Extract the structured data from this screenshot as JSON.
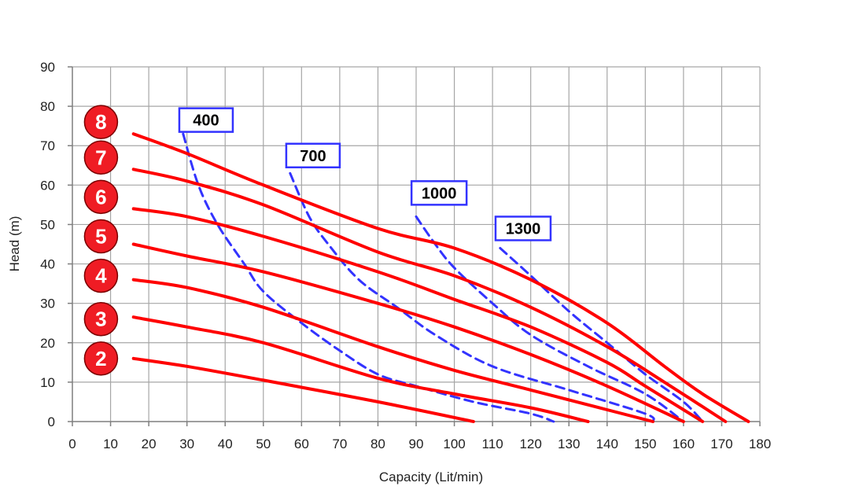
{
  "chart_data": {
    "type": "line",
    "title": "",
    "xlabel": "Capacity (Lit/min)",
    "ylabel": "Head (m)",
    "xlim": [
      0,
      180
    ],
    "ylim": [
      0,
      90
    ],
    "x_ticks": [
      0,
      10,
      20,
      30,
      40,
      50,
      60,
      70,
      80,
      90,
      100,
      110,
      120,
      130,
      140,
      150,
      160,
      170,
      180
    ],
    "y_ticks": [
      0,
      10,
      20,
      30,
      40,
      50,
      60,
      70,
      80,
      90
    ],
    "grid": true,
    "colors": {
      "pressure_curve": "#ff0000",
      "speed_curve": "#3333ff",
      "badge_fill": "#ef1c24",
      "badge_text": "#ffffff",
      "label_border": "#3333ff"
    },
    "series": [
      {
        "name": "8",
        "kind": "pressure",
        "points": [
          [
            16,
            73
          ],
          [
            30,
            68
          ],
          [
            50,
            60
          ],
          [
            80,
            49
          ],
          [
            100,
            44
          ],
          [
            120,
            36
          ],
          [
            140,
            25
          ],
          [
            155,
            14
          ],
          [
            165,
            7
          ],
          [
            177,
            0
          ]
        ]
      },
      {
        "name": "7",
        "kind": "pressure",
        "points": [
          [
            16,
            64
          ],
          [
            30,
            61
          ],
          [
            50,
            55
          ],
          [
            80,
            43
          ],
          [
            100,
            37
          ],
          [
            120,
            29
          ],
          [
            140,
            19
          ],
          [
            155,
            10
          ],
          [
            171,
            0
          ]
        ]
      },
      {
        "name": "6",
        "kind": "pressure",
        "points": [
          [
            16,
            54
          ],
          [
            30,
            52
          ],
          [
            50,
            47
          ],
          [
            80,
            38
          ],
          [
            100,
            31
          ],
          [
            120,
            24
          ],
          [
            140,
            15
          ],
          [
            150,
            9
          ],
          [
            165,
            0
          ]
        ]
      },
      {
        "name": "5",
        "kind": "pressure",
        "points": [
          [
            16,
            45
          ],
          [
            30,
            42
          ],
          [
            50,
            38
          ],
          [
            80,
            30
          ],
          [
            100,
            24
          ],
          [
            120,
            17
          ],
          [
            140,
            9
          ],
          [
            160,
            0
          ]
        ]
      },
      {
        "name": "4",
        "kind": "pressure",
        "points": [
          [
            16,
            36
          ],
          [
            30,
            34
          ],
          [
            50,
            29
          ],
          [
            80,
            19
          ],
          [
            100,
            13
          ],
          [
            120,
            8
          ],
          [
            140,
            3
          ],
          [
            152,
            0
          ]
        ]
      },
      {
        "name": "3",
        "kind": "pressure",
        "points": [
          [
            16,
            26.5
          ],
          [
            30,
            24
          ],
          [
            50,
            20
          ],
          [
            80,
            11
          ],
          [
            100,
            7
          ],
          [
            120,
            3.5
          ],
          [
            135,
            0
          ]
        ]
      },
      {
        "name": "2",
        "kind": "pressure",
        "points": [
          [
            16,
            16
          ],
          [
            30,
            14
          ],
          [
            50,
            10.5
          ],
          [
            80,
            5
          ],
          [
            105,
            0
          ]
        ]
      },
      {
        "name": "400",
        "kind": "speed",
        "points": [
          [
            29,
            73
          ],
          [
            33,
            60
          ],
          [
            38,
            50
          ],
          [
            45,
            40
          ],
          [
            50,
            33
          ],
          [
            60,
            25
          ],
          [
            70,
            18
          ],
          [
            80,
            12
          ],
          [
            90,
            9
          ],
          [
            105,
            5
          ],
          [
            120,
            2
          ],
          [
            126,
            0
          ]
        ]
      },
      {
        "name": "700",
        "kind": "speed",
        "points": [
          [
            57,
            63
          ],
          [
            62,
            52
          ],
          [
            67,
            45
          ],
          [
            75,
            36
          ],
          [
            85,
            29
          ],
          [
            95,
            22
          ],
          [
            110,
            14
          ],
          [
            130,
            8
          ],
          [
            150,
            2
          ],
          [
            152,
            0
          ]
        ]
      },
      {
        "name": "1000",
        "kind": "speed",
        "points": [
          [
            90,
            52
          ],
          [
            95,
            45
          ],
          [
            100,
            39
          ],
          [
            110,
            30
          ],
          [
            120,
            22
          ],
          [
            135,
            14
          ],
          [
            150,
            7
          ],
          [
            160,
            0
          ]
        ]
      },
      {
        "name": "1300",
        "kind": "speed",
        "points": [
          [
            112,
            44
          ],
          [
            120,
            37
          ],
          [
            130,
            28
          ],
          [
            140,
            20
          ],
          [
            150,
            12
          ],
          [
            160,
            5
          ],
          [
            165,
            0
          ]
        ]
      }
    ],
    "pressure_badges": [
      {
        "label": "8",
        "y": 76
      },
      {
        "label": "7",
        "y": 67
      },
      {
        "label": "6",
        "y": 57
      },
      {
        "label": "5",
        "y": 47
      },
      {
        "label": "4",
        "y": 37
      },
      {
        "label": "3",
        "y": 26
      },
      {
        "label": "2",
        "y": 16
      }
    ],
    "speed_labels": [
      {
        "label": "400",
        "x": 35,
        "y": 76.5
      },
      {
        "label": "700",
        "x": 63,
        "y": 67.5
      },
      {
        "label": "1000",
        "x": 96,
        "y": 58
      },
      {
        "label": "1300",
        "x": 118,
        "y": 49
      }
    ]
  }
}
